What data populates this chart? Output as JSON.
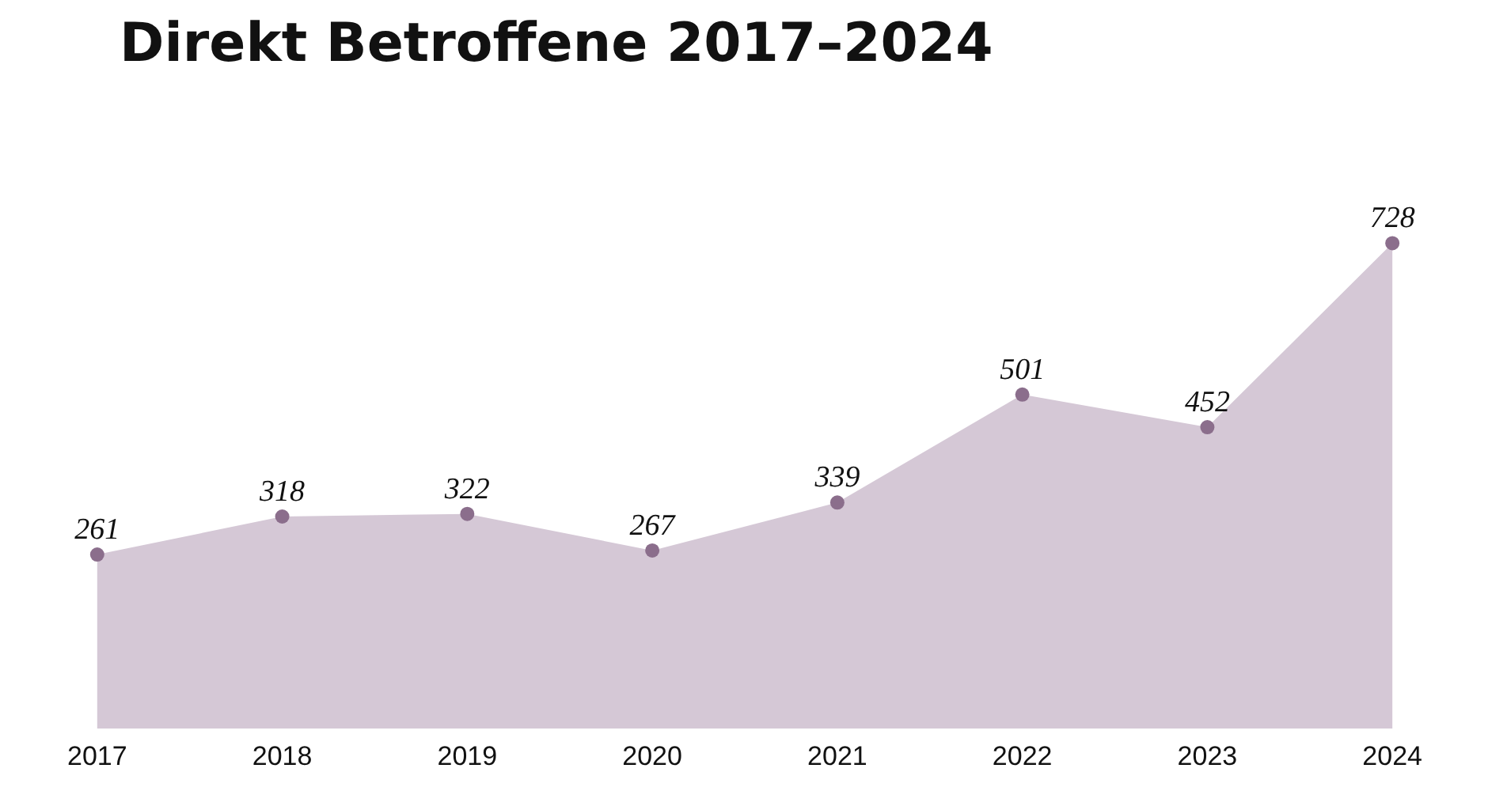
{
  "chart_data": {
    "type": "area",
    "title": "Direkt Betroffene 2017–2024",
    "categories": [
      "2017",
      "2018",
      "2019",
      "2020",
      "2021",
      "2022",
      "2023",
      "2024"
    ],
    "series": [
      {
        "color": "#d5c8d6",
        "values": [
          261,
          318,
          322,
          267,
          339,
          501,
          452,
          728
        ]
      }
    ],
    "data_labels": true,
    "marker": "circle",
    "grid": false,
    "tick_labels": "x"
  }
}
